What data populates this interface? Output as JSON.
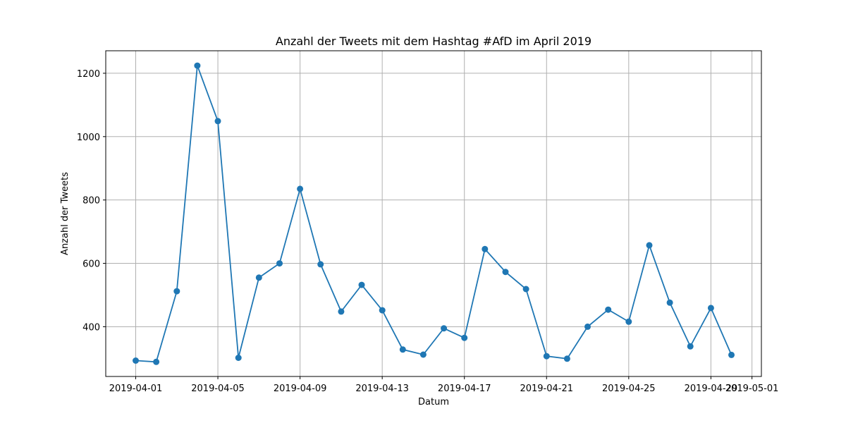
{
  "chart_data": {
    "type": "line",
    "title": "Anzahl der Tweets mit dem Hashtag #AfD im April 2019",
    "xlabel": "Datum",
    "ylabel": "Anzahl der Tweets",
    "x_tick_labels": [
      "2019-04-01",
      "2019-04-05",
      "2019-04-09",
      "2019-04-13",
      "2019-04-17",
      "2019-04-21",
      "2019-04-25",
      "2019-04-29",
      "2019-05-01"
    ],
    "y_ticks": [
      400,
      600,
      800,
      1000,
      1200
    ],
    "y_tick_labels": [
      "400",
      "600",
      "800",
      "1000",
      "1200"
    ],
    "ylim": [
      243,
      1271
    ],
    "xlim": [
      "2019-03-30T13:00",
      "2019-05-01T11:00"
    ],
    "grid": true,
    "marker": "circle",
    "line_color": "#1f77b4",
    "series": [
      {
        "x": [
          "2019-04-01",
          "2019-04-02",
          "2019-04-03",
          "2019-04-04",
          "2019-04-05",
          "2019-04-06",
          "2019-04-07",
          "2019-04-08",
          "2019-04-09",
          "2019-04-10",
          "2019-04-11",
          "2019-04-12",
          "2019-04-13",
          "2019-04-14",
          "2019-04-15",
          "2019-04-16",
          "2019-04-17",
          "2019-04-18",
          "2019-04-19",
          "2019-04-20",
          "2019-04-21",
          "2019-04-22",
          "2019-04-23",
          "2019-04-24",
          "2019-04-25",
          "2019-04-26",
          "2019-04-27",
          "2019-04-28",
          "2019-04-29",
          "2019-04-30"
        ],
        "values": [
          293,
          289,
          512,
          1224,
          1049,
          302,
          555,
          600,
          835,
          597,
          448,
          532,
          452,
          328,
          312,
          395,
          365,
          645,
          573,
          519,
          307,
          299,
          400,
          454,
          416,
          657,
          476,
          338,
          459,
          311
        ]
      }
    ]
  }
}
